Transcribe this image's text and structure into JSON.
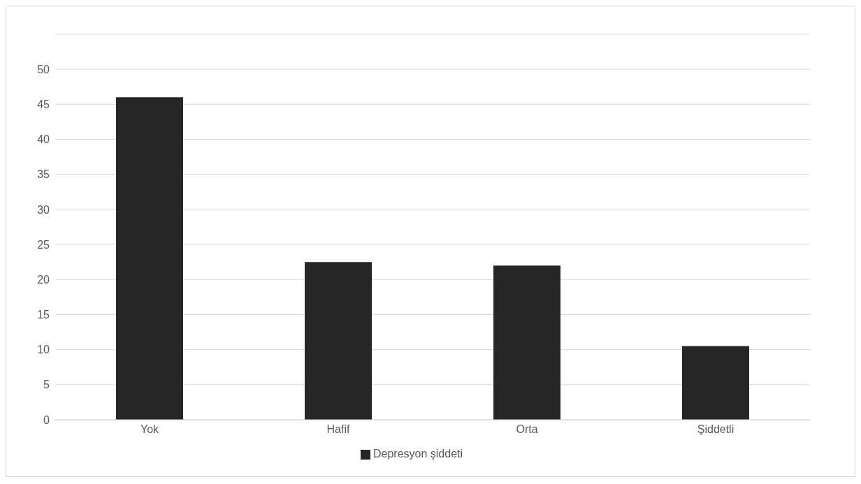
{
  "chart_data": {
    "type": "bar",
    "categories": [
      "Yok",
      "Hafif",
      "Orta",
      "Şiddetli"
    ],
    "series": [
      {
        "name": "Depresyon şiddeti",
        "color": "#262626",
        "values": [
          46,
          22.5,
          22,
          10.5
        ]
      }
    ],
    "ylim": [
      0,
      55
    ],
    "yticks": [
      0,
      5,
      10,
      15,
      20,
      25,
      30,
      35,
      40,
      45,
      50
    ],
    "grid": "y",
    "legend": "bottom"
  }
}
